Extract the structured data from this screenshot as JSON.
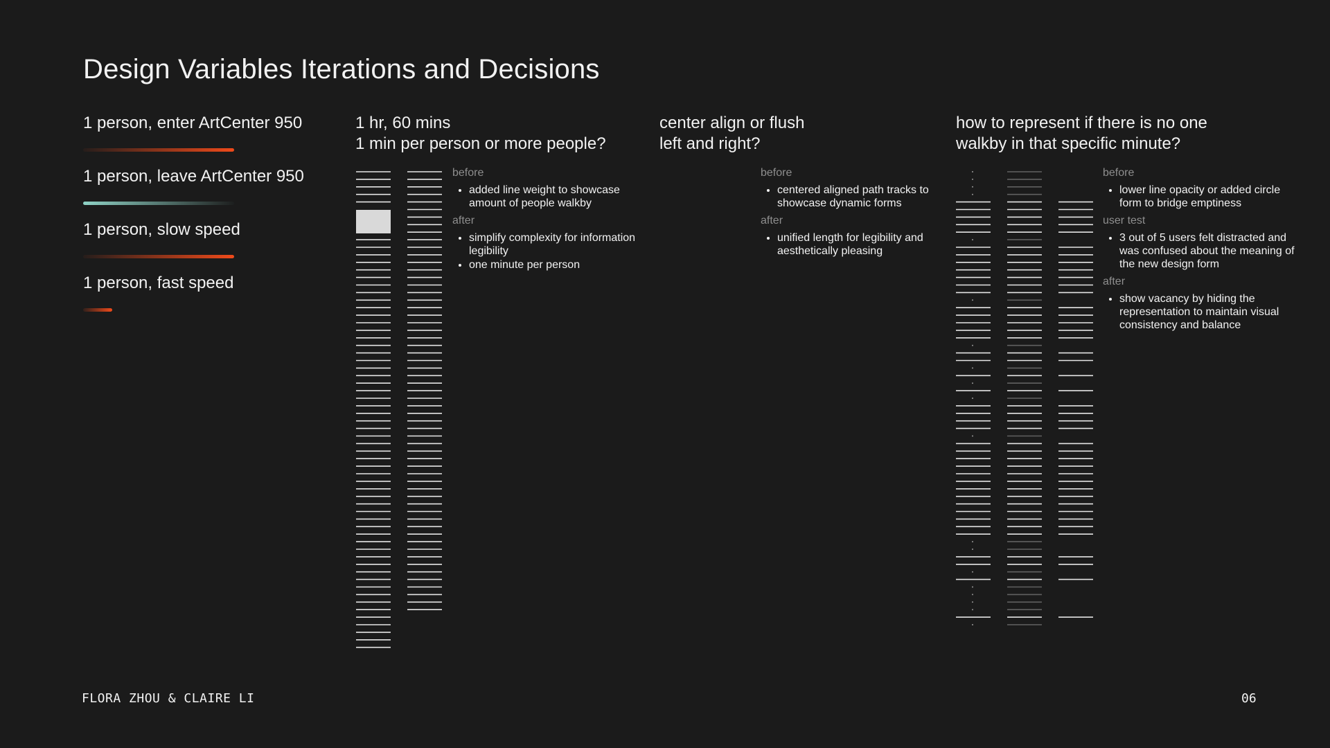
{
  "title": "Design Variables Iterations and Decisions",
  "colors": {
    "enter": "#f04a1a",
    "leave": "#8fd3c6",
    "line": "#e6e6e6",
    "bg": "#1b1b1b"
  },
  "legend": [
    {
      "label": "1 person, enter ArtCenter 950",
      "style": "enter"
    },
    {
      "label": "1 person, leave ArtCenter 950",
      "style": "leave"
    },
    {
      "label": "1 person, slow speed",
      "style": "slow"
    },
    {
      "label": "1 person, fast speed",
      "style": "fast"
    }
  ],
  "columns": [
    {
      "heading": [
        "1 hr, 60 mins",
        "1 min per person or more people?"
      ],
      "notes": [
        {
          "label": "before",
          "items": [
            "added line weight to showcase amount of people walkby"
          ]
        },
        {
          "label": "after",
          "items": [
            "simplify complexity for information legibility",
            "one minute per person"
          ]
        }
      ]
    },
    {
      "heading": [
        "center align or flush",
        "left and right?"
      ],
      "notes": [
        {
          "label": "before",
          "items": [
            "centered aligned path tracks to showcase dynamic forms"
          ]
        },
        {
          "label": "after",
          "items": [
            "unified length for legibility and aesthetically pleasing"
          ]
        }
      ]
    },
    {
      "heading": [
        "how to represent if there is no one",
        "walkby in that specific minute?"
      ],
      "notes": [
        {
          "label": "before",
          "items": [
            "lower line opacity or added circle form to bridge emptiness"
          ]
        },
        {
          "label": "user test",
          "items": [
            "3 out of 5 users felt distracted and was confused about the meaning of the new design form"
          ]
        },
        {
          "label": "after",
          "items": [
            "show vacancy by hiding the representation to maintain visual consistency and balance"
          ]
        }
      ]
    }
  ],
  "footer": {
    "authors": "FLORA ZHOU & CLAIRE LI",
    "page": "06"
  }
}
